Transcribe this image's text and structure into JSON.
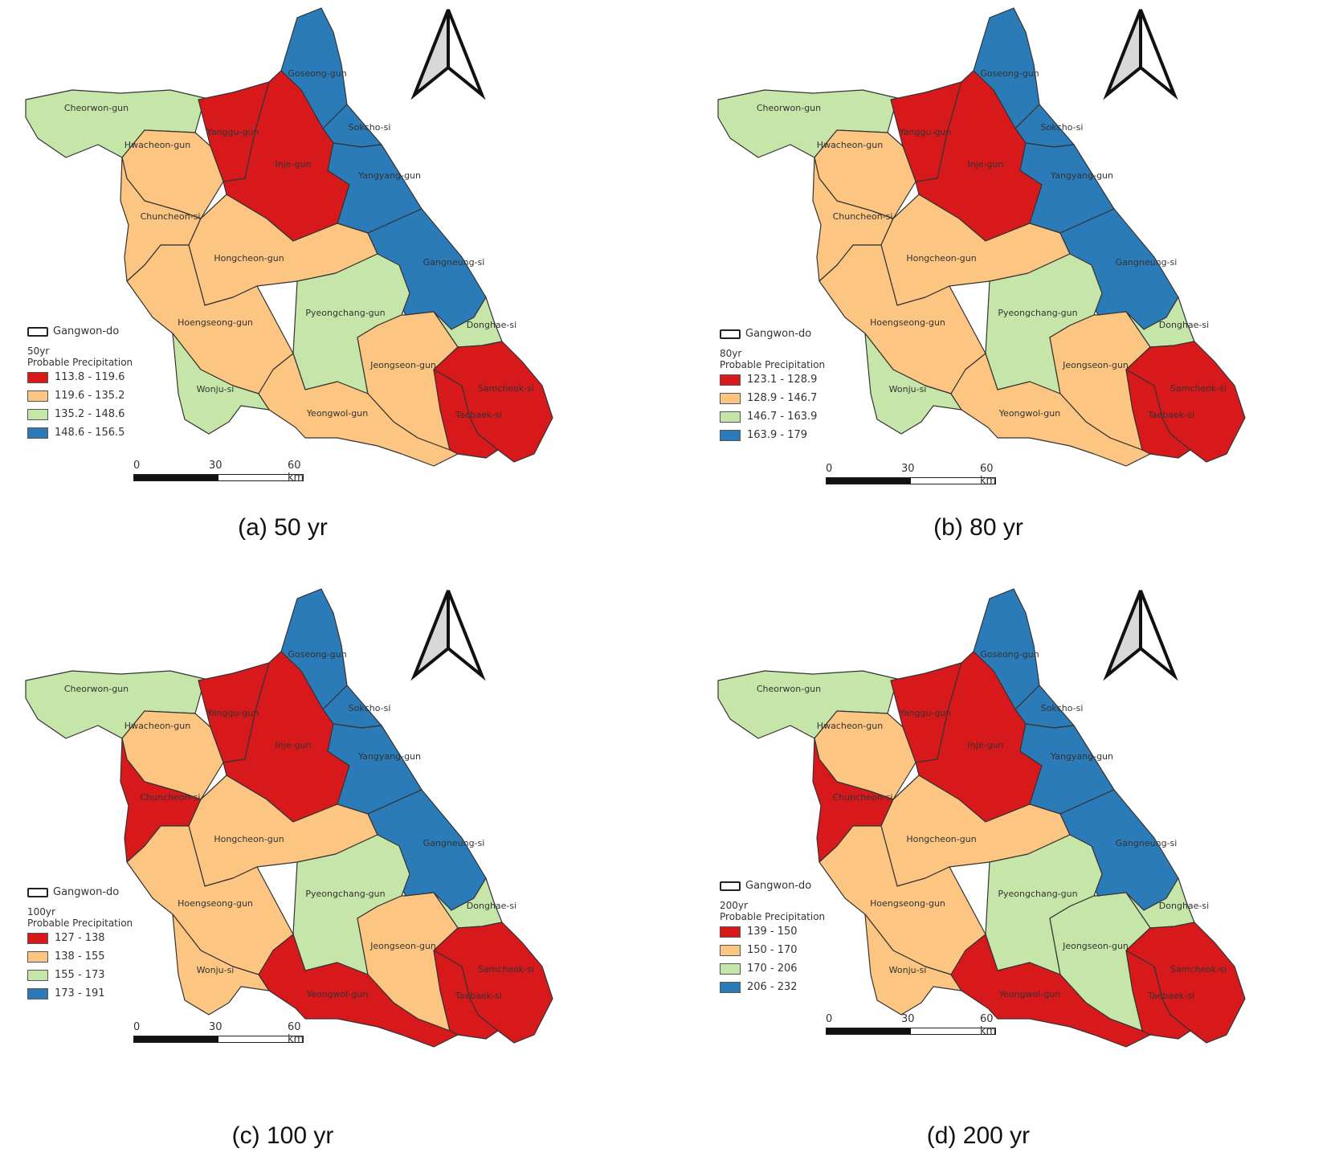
{
  "boundary_label": "Gangwon-do",
  "legend_subtitle": "Probable Precipitation",
  "scale": {
    "zero": "0",
    "mid": "30",
    "end": "60 km"
  },
  "colors": {
    "class1": "#d7191c",
    "class2": "#fdc582",
    "class3": "#c6e6a9",
    "class4": "#2b7bb9"
  },
  "regions": [
    "Goseong-gun",
    "Cheorwon-gun",
    "Yanggu-gun",
    "Sokcho-si",
    "Hwacheon-gun",
    "Inje-gun",
    "Yangyang-gun",
    "Chuncheon-si",
    "Hongcheon-gun",
    "Gangneung-si",
    "Pyeongchang-gun",
    "Hoengseong-gun",
    "Donghae-si",
    "Jeongseon-gun",
    "Samcheok-si",
    "Wonju-si",
    "Taebaek-si",
    "Yeongwol-gun"
  ],
  "panels": [
    {
      "caption": "(a)  50  yr",
      "period": "50yr",
      "classes": [
        "113.8 - 119.6",
        "119.6 - 135.2",
        "135.2 - 148.6",
        "148.6 - 156.5"
      ],
      "region_class": [
        4,
        3,
        1,
        4,
        2,
        1,
        4,
        2,
        2,
        4,
        3,
        2,
        3,
        2,
        1,
        3,
        1,
        2
      ]
    },
    {
      "caption": "(b)  80  yr",
      "period": "80yr",
      "classes": [
        "123.1 - 128.9",
        "128.9 - 146.7",
        "146.7 - 163.9",
        "163.9 - 179"
      ],
      "region_class": [
        4,
        3,
        1,
        4,
        2,
        1,
        4,
        2,
        2,
        4,
        3,
        2,
        3,
        2,
        1,
        3,
        1,
        2
      ]
    },
    {
      "caption": "(c)  100  yr",
      "period": "100yr",
      "classes": [
        "127 - 138",
        "138 - 155",
        "155 - 173",
        "173 - 191"
      ],
      "region_class": [
        4,
        3,
        1,
        4,
        2,
        1,
        4,
        1,
        2,
        4,
        3,
        2,
        3,
        2,
        1,
        2,
        1,
        1
      ]
    },
    {
      "caption": "(d)  200  yr",
      "period": "200yr",
      "classes": [
        "139 - 150",
        "150 - 170",
        "170 - 206",
        "206 - 232"
      ],
      "region_class": [
        4,
        3,
        1,
        4,
        2,
        1,
        4,
        1,
        2,
        4,
        3,
        2,
        3,
        3,
        1,
        2,
        1,
        1
      ]
    }
  ]
}
